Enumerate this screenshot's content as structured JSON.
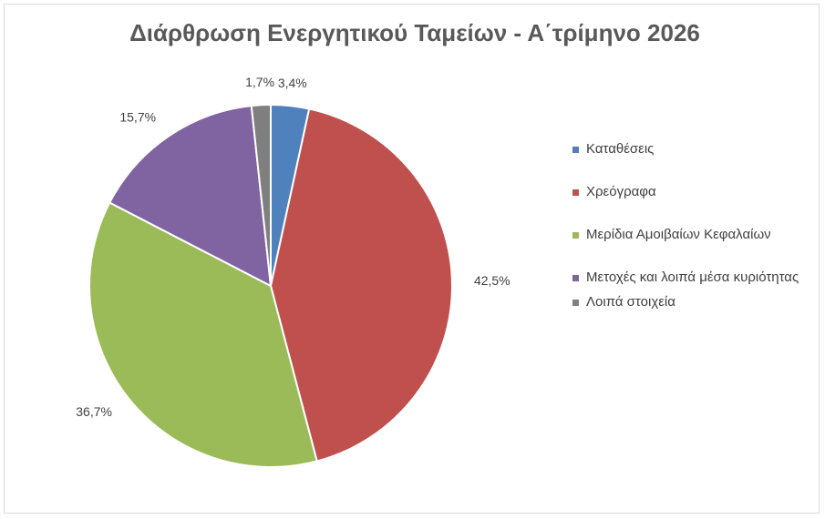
{
  "chart_data": {
    "type": "pie",
    "title": "Διάρθρωση Ενεργητικού Ταμείων - Α΄τρίμηνο 2026",
    "categories": [
      "Καταθέσεις",
      "Χρεόγραφα",
      "Μερίδια Αμοιβαίων Κεφαλαίων",
      "Μετοχές και λοιπά μέσα κυριότητας",
      "Λοιπά στοιχεία"
    ],
    "values": [
      3.4,
      42.5,
      36.7,
      15.7,
      1.7
    ],
    "value_labels": [
      "3,4%",
      "42,5%",
      "36,7%",
      "15,7%",
      "1,7%"
    ],
    "colors": [
      "#4f81bd",
      "#c0504d",
      "#9bbb59",
      "#8064a2",
      "#7f7f7f"
    ],
    "legend": "right"
  }
}
